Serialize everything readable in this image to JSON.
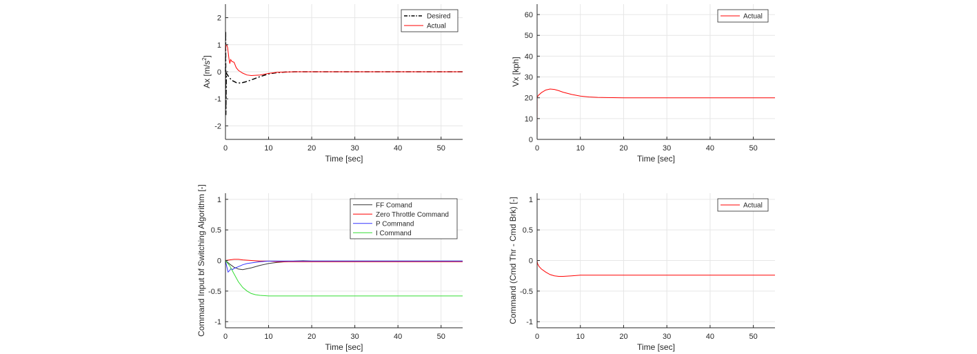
{
  "chart_data": [
    {
      "type": "line",
      "xlabel": "Time [sec]",
      "ylabel": "Ax [m/s²]",
      "ylabel_base": "Ax [m/s",
      "ylabel_sup": "2",
      "ylabel_tail": "]",
      "xlim": [
        0,
        55
      ],
      "ylim": [
        -2.5,
        2.5
      ],
      "xticks": [
        0,
        10,
        20,
        30,
        40,
        50
      ],
      "yticks": [
        -2,
        -1,
        0,
        1,
        2
      ],
      "grid": true,
      "legend_position": "top-right",
      "series": [
        {
          "name": "Desired",
          "color": "#000000",
          "style": "dashdot",
          "x": [
            0,
            0.05,
            0.1,
            0.2,
            0.4,
            0.8,
            1.5,
            2.5,
            3.5,
            4.5,
            6,
            8,
            10,
            12,
            14,
            16,
            20,
            30,
            55
          ],
          "y": [
            0,
            1.5,
            -1.6,
            -0.05,
            -0.1,
            -0.2,
            -0.32,
            -0.4,
            -0.42,
            -0.38,
            -0.3,
            -0.18,
            -0.08,
            -0.03,
            -0.01,
            0,
            0,
            0,
            0
          ]
        },
        {
          "name": "Actual",
          "color": "#ff0000",
          "style": "solid",
          "x": [
            0,
            0.1,
            0.3,
            0.5,
            0.8,
            1.0,
            1.2,
            1.5,
            2.0,
            2.5,
            3.0,
            4.0,
            5.0,
            6.0,
            8.0,
            10.0,
            12.0,
            14.0,
            16.0,
            20.0,
            55.0
          ],
          "y": [
            0.7,
            1.0,
            0.98,
            0.9,
            0.5,
            0.3,
            0.45,
            0.38,
            0.35,
            0.15,
            0.05,
            -0.05,
            -0.12,
            -0.14,
            -0.12,
            -0.06,
            -0.02,
            -0.01,
            0,
            0,
            0
          ]
        }
      ]
    },
    {
      "type": "line",
      "xlabel": "Time [sec]",
      "ylabel": "Vx [kph]",
      "xlim": [
        0,
        55
      ],
      "ylim": [
        0,
        65
      ],
      "xticks": [
        0,
        10,
        20,
        30,
        40,
        50
      ],
      "yticks": [
        0,
        10,
        20,
        30,
        40,
        50,
        60
      ],
      "grid": true,
      "legend_position": "top-right",
      "series": [
        {
          "name": "Actual",
          "color": "#ff0000",
          "style": "solid",
          "x": [
            0,
            0.02,
            0.3,
            1,
            2,
            3,
            4,
            5,
            6,
            8,
            10,
            12,
            14,
            16,
            20,
            30,
            55
          ],
          "y": [
            0,
            20.3,
            21.2,
            22.5,
            23.7,
            24.2,
            24.0,
            23.4,
            22.7,
            21.6,
            20.8,
            20.4,
            20.2,
            20.1,
            20.0,
            20.0,
            20.0
          ]
        }
      ]
    },
    {
      "type": "line",
      "xlabel": "Time [sec]",
      "ylabel": "Command Input bf Switching Algorithm [-]",
      "xlim": [
        0,
        55
      ],
      "ylim": [
        -1.1,
        1.1
      ],
      "xticks": [
        0,
        10,
        20,
        30,
        40,
        50
      ],
      "yticks": [
        -1,
        -0.5,
        0,
        0.5,
        1
      ],
      "ytick_labels": [
        "-1",
        "-0.5",
        "0",
        "0.5",
        "1"
      ],
      "grid": true,
      "legend_position": "top-right",
      "series": [
        {
          "name": "FF Comand",
          "color": "#333333",
          "style": "solid",
          "x": [
            0,
            1,
            2,
            3,
            4,
            6,
            8,
            10,
            12,
            14,
            16,
            18,
            20,
            55
          ],
          "y": [
            0,
            -0.06,
            -0.11,
            -0.14,
            -0.15,
            -0.12,
            -0.08,
            -0.05,
            -0.03,
            -0.02,
            -0.01,
            -0.005,
            -0.01,
            -0.01
          ]
        },
        {
          "name": "Zero Throttle Command",
          "color": "#ff0000",
          "style": "solid",
          "x": [
            0,
            1,
            2,
            3,
            4,
            6,
            8,
            10,
            12,
            15,
            20,
            55
          ],
          "y": [
            0,
            0.01,
            0.02,
            0.02,
            0.01,
            0,
            -0.01,
            -0.01,
            -0.02,
            -0.02,
            -0.02,
            -0.02
          ]
        },
        {
          "name": "P Command",
          "color": "#3333ff",
          "style": "solid",
          "x": [
            0,
            0.3,
            0.6,
            1.0,
            1.3,
            1.6,
            2,
            3,
            4,
            5,
            6,
            8,
            10,
            12,
            15,
            20,
            55
          ],
          "y": [
            0,
            -0.1,
            -0.19,
            -0.16,
            -0.13,
            -0.15,
            -0.13,
            -0.1,
            -0.07,
            -0.05,
            -0.04,
            -0.02,
            -0.01,
            -0.01,
            -0.01,
            -0.01,
            -0.01
          ]
        },
        {
          "name": "I Command",
          "color": "#33dd33",
          "style": "solid",
          "x": [
            0,
            1,
            2,
            3,
            4,
            5,
            6,
            7,
            8,
            10,
            12,
            15,
            20,
            55
          ],
          "y": [
            0,
            -0.09,
            -0.22,
            -0.35,
            -0.44,
            -0.5,
            -0.54,
            -0.56,
            -0.57,
            -0.58,
            -0.58,
            -0.58,
            -0.58,
            -0.58
          ]
        }
      ]
    },
    {
      "type": "line",
      "xlabel": "Time [sec]",
      "ylabel": "Command (Cmd Thr - Cmd Brk) [-]",
      "xlim": [
        0,
        55
      ],
      "ylim": [
        -1.1,
        1.1
      ],
      "xticks": [
        0,
        10,
        20,
        30,
        40,
        50
      ],
      "yticks": [
        -1,
        -0.5,
        0,
        0.5,
        1
      ],
      "ytick_labels": [
        "-1",
        "-0.5",
        "0",
        "0.5",
        "1"
      ],
      "grid": true,
      "legend_position": "top-right",
      "series": [
        {
          "name": "Actual",
          "color": "#ff0000",
          "style": "solid",
          "x": [
            0,
            0.1,
            0.3,
            0.5,
            1,
            2,
            3,
            4,
            5,
            6,
            8,
            10,
            12,
            15,
            20,
            55
          ],
          "y": [
            0,
            -0.05,
            -0.08,
            -0.1,
            -0.14,
            -0.19,
            -0.23,
            -0.25,
            -0.26,
            -0.26,
            -0.25,
            -0.24,
            -0.24,
            -0.24,
            -0.24,
            -0.24
          ]
        }
      ]
    }
  ]
}
